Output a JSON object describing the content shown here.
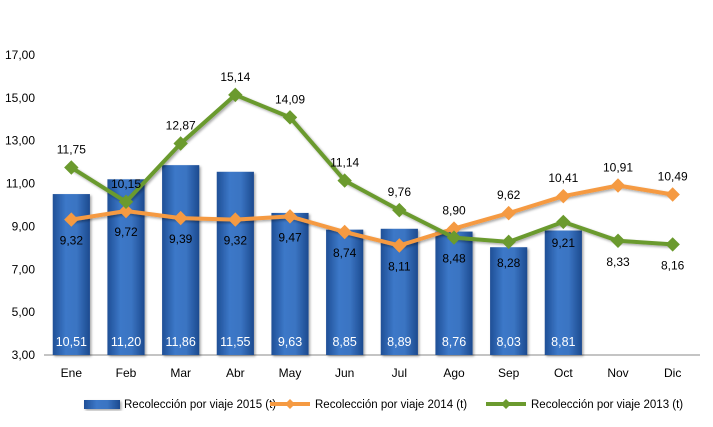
{
  "chart_data": {
    "type": "bar",
    "categories": [
      "Ene",
      "Feb",
      "Mar",
      "Abr",
      "May",
      "Jun",
      "Jul",
      "Ago",
      "Sep",
      "Oct",
      "Nov",
      "Dic"
    ],
    "ylim": [
      3.0,
      17.0
    ],
    "yticks": [
      "3,00",
      "5,00",
      "7,00",
      "9,00",
      "11,00",
      "13,00",
      "15,00",
      "17,00"
    ],
    "grid": false,
    "legend": "bottom",
    "series": [
      {
        "name": "Recolección por viaje 2015 (t)",
        "type": "bar",
        "color": "#2e64b0",
        "values": [
          10.51,
          11.2,
          11.86,
          11.55,
          9.63,
          8.85,
          8.89,
          8.76,
          8.03,
          8.81,
          null,
          null
        ],
        "labels": [
          "10,51",
          "11,20",
          "11,86",
          "11,55",
          "9,63",
          "8,85",
          "8,89",
          "8,76",
          "8,03",
          "8,81",
          null,
          null
        ]
      },
      {
        "name": "Recolección por viaje 2014 (t)",
        "type": "line",
        "color": "#f59a42",
        "values": [
          9.32,
          9.72,
          9.39,
          9.32,
          9.47,
          8.74,
          8.11,
          8.9,
          9.62,
          10.41,
          10.91,
          10.49
        ],
        "labels": [
          "9,32",
          "9,72",
          "9,39",
          "9,32",
          "9,47",
          "8,74",
          "8,11",
          "8,90",
          "9,62",
          "10,41",
          "10,91",
          "10,49"
        ]
      },
      {
        "name": "Recolección por viaje 2013 (t)",
        "type": "line",
        "color": "#6b9a2e",
        "values": [
          11.75,
          10.15,
          12.87,
          15.14,
          14.09,
          11.14,
          9.76,
          8.48,
          8.28,
          9.21,
          8.33,
          8.16
        ],
        "labels": [
          "11,75",
          "10,15",
          "12,87",
          "15,14",
          "14,09",
          "11,14",
          "9,76",
          "8,48",
          "8,28",
          "9,21",
          "8,33",
          "8,16"
        ]
      }
    ]
  }
}
